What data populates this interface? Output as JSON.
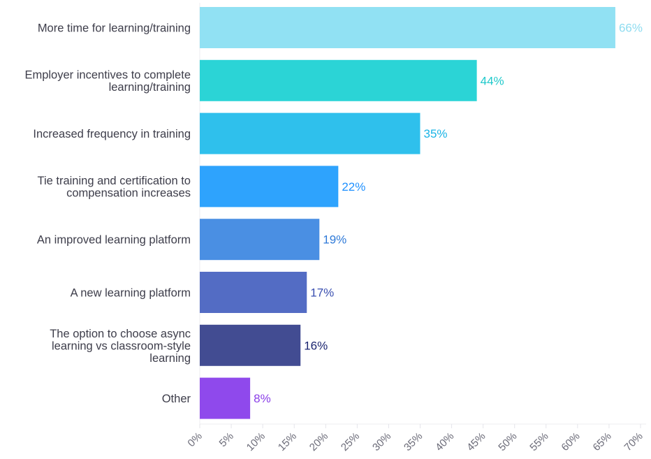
{
  "chart_data": {
    "type": "bar",
    "orientation": "horizontal",
    "title": "",
    "xlabel": "",
    "ylabel": "",
    "xlim": [
      0,
      70
    ],
    "grid": false,
    "categories": [
      [
        "More time for learning/training"
      ],
      [
        "Employer incentives to complete",
        "learning/training"
      ],
      [
        "Increased frequency in training"
      ],
      [
        "Tie training and certification to",
        "compensation increases"
      ],
      [
        "An improved learning platform"
      ],
      [
        "A new learning platform"
      ],
      [
        "The option to choose async",
        "learning vs classroom-style",
        "learning"
      ],
      [
        "Other"
      ]
    ],
    "values": [
      66,
      44,
      35,
      22,
      19,
      17,
      16,
      8
    ],
    "data_labels": [
      "66%",
      "44%",
      "35%",
      "22%",
      "19%",
      "17%",
      "16%",
      "8%"
    ],
    "x_ticks": [
      "0%",
      "5%",
      "10%",
      "15%",
      "20%",
      "25%",
      "30%",
      "35%",
      "40%",
      "45%",
      "50%",
      "55%",
      "60%",
      "65%",
      "70%"
    ],
    "bar_colors": [
      "#91e1f3",
      "#2bd4d6",
      "#2fc0ec",
      "#2ea3fd",
      "#4a8fe3",
      "#536cc4",
      "#424c92",
      "#8f49ec"
    ],
    "label_colors": [
      "#8edcf0",
      "#1fc9cb",
      "#1ab4e6",
      "#1e90ff",
      "#2f7ad8",
      "#3a4fb0",
      "#1b2570",
      "#8a3ee8"
    ]
  }
}
